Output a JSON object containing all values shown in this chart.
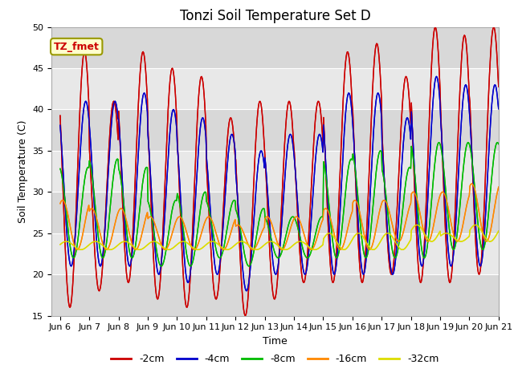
{
  "title": "Tonzi Soil Temperature Set D",
  "xlabel": "Time",
  "ylabel": "Soil Temperature (C)",
  "ylim": [
    15,
    50
  ],
  "xlim_days": [
    5.7,
    21.0
  ],
  "x_ticks": [
    6,
    7,
    8,
    9,
    10,
    11,
    12,
    13,
    14,
    15,
    16,
    17,
    18,
    19,
    20,
    21
  ],
  "x_tick_labels": [
    "Jun 6",
    "Jun 7",
    "Jun 8",
    "Jun 9",
    "Jun 10",
    "Jun 11",
    "Jun 12",
    "Jun 13",
    "Jun 14",
    "Jun 15",
    "Jun 16",
    "Jun 17",
    "Jun 18",
    "Jun 19",
    "Jun 20",
    "Jun 21"
  ],
  "colors": {
    "-2cm": "#cc0000",
    "-4cm": "#0000cc",
    "-8cm": "#00bb00",
    "-16cm": "#ff8800",
    "-32cm": "#dddd00"
  },
  "annotation_text": "TZ_fmet",
  "annotation_bg": "#ffffcc",
  "annotation_fg": "#cc0000",
  "title_fontsize": 12,
  "axis_fontsize": 9,
  "tick_fontsize": 8,
  "legend_fontsize": 9,
  "yticks": [
    15,
    20,
    25,
    30,
    35,
    40,
    45,
    50
  ],
  "grid_color": "#cccccc",
  "plot_bg": "#e8e8e8",
  "alt_band_color": "#d8d8d8",
  "daily_max_2cm": [
    47,
    41,
    47,
    45,
    44,
    39,
    41,
    41,
    41,
    47,
    48,
    44,
    50,
    49,
    50,
    50
  ],
  "daily_min_2cm": [
    16,
    18,
    19,
    17,
    16,
    17,
    15,
    17,
    19,
    19,
    19,
    20,
    19,
    19,
    20,
    21
  ],
  "daily_max_4cm": [
    41,
    41,
    42,
    40,
    39,
    37,
    35,
    37,
    37,
    42,
    42,
    39,
    44,
    43,
    43,
    43
  ],
  "daily_min_4cm": [
    21,
    21,
    21,
    20,
    19,
    20,
    18,
    20,
    20,
    20,
    20,
    20,
    21,
    21,
    21,
    23
  ],
  "daily_max_8cm": [
    33,
    34,
    33,
    29,
    30,
    29,
    28,
    27,
    27,
    34,
    35,
    33,
    36,
    36,
    36,
    36
  ],
  "daily_min_8cm": [
    22,
    22,
    22,
    21,
    21,
    22,
    21,
    22,
    22,
    22,
    22,
    22,
    22,
    23,
    23,
    25
  ],
  "daily_max_16cm": [
    29,
    28,
    28,
    27,
    27,
    27,
    26,
    27,
    27,
    28,
    29,
    29,
    30,
    30,
    31,
    31
  ],
  "daily_min_16cm": [
    23,
    23,
    23,
    23,
    23,
    23,
    23,
    23,
    23,
    23,
    23,
    24,
    24,
    24,
    24,
    25
  ],
  "daily_max_32cm": [
    24,
    24,
    24,
    24,
    24,
    24,
    24,
    24,
    24,
    25,
    25,
    25,
    26,
    25,
    26,
    26
  ],
  "daily_min_32cm": [
    23,
    23,
    23,
    23,
    23,
    23,
    23,
    23,
    23,
    23,
    23,
    23,
    24,
    24,
    24,
    24
  ],
  "peak_hour_2cm": 14,
  "peak_hour_4cm": 15,
  "peak_hour_8cm": 17,
  "peak_hour_16cm": 20,
  "peak_hour_32cm": 23
}
